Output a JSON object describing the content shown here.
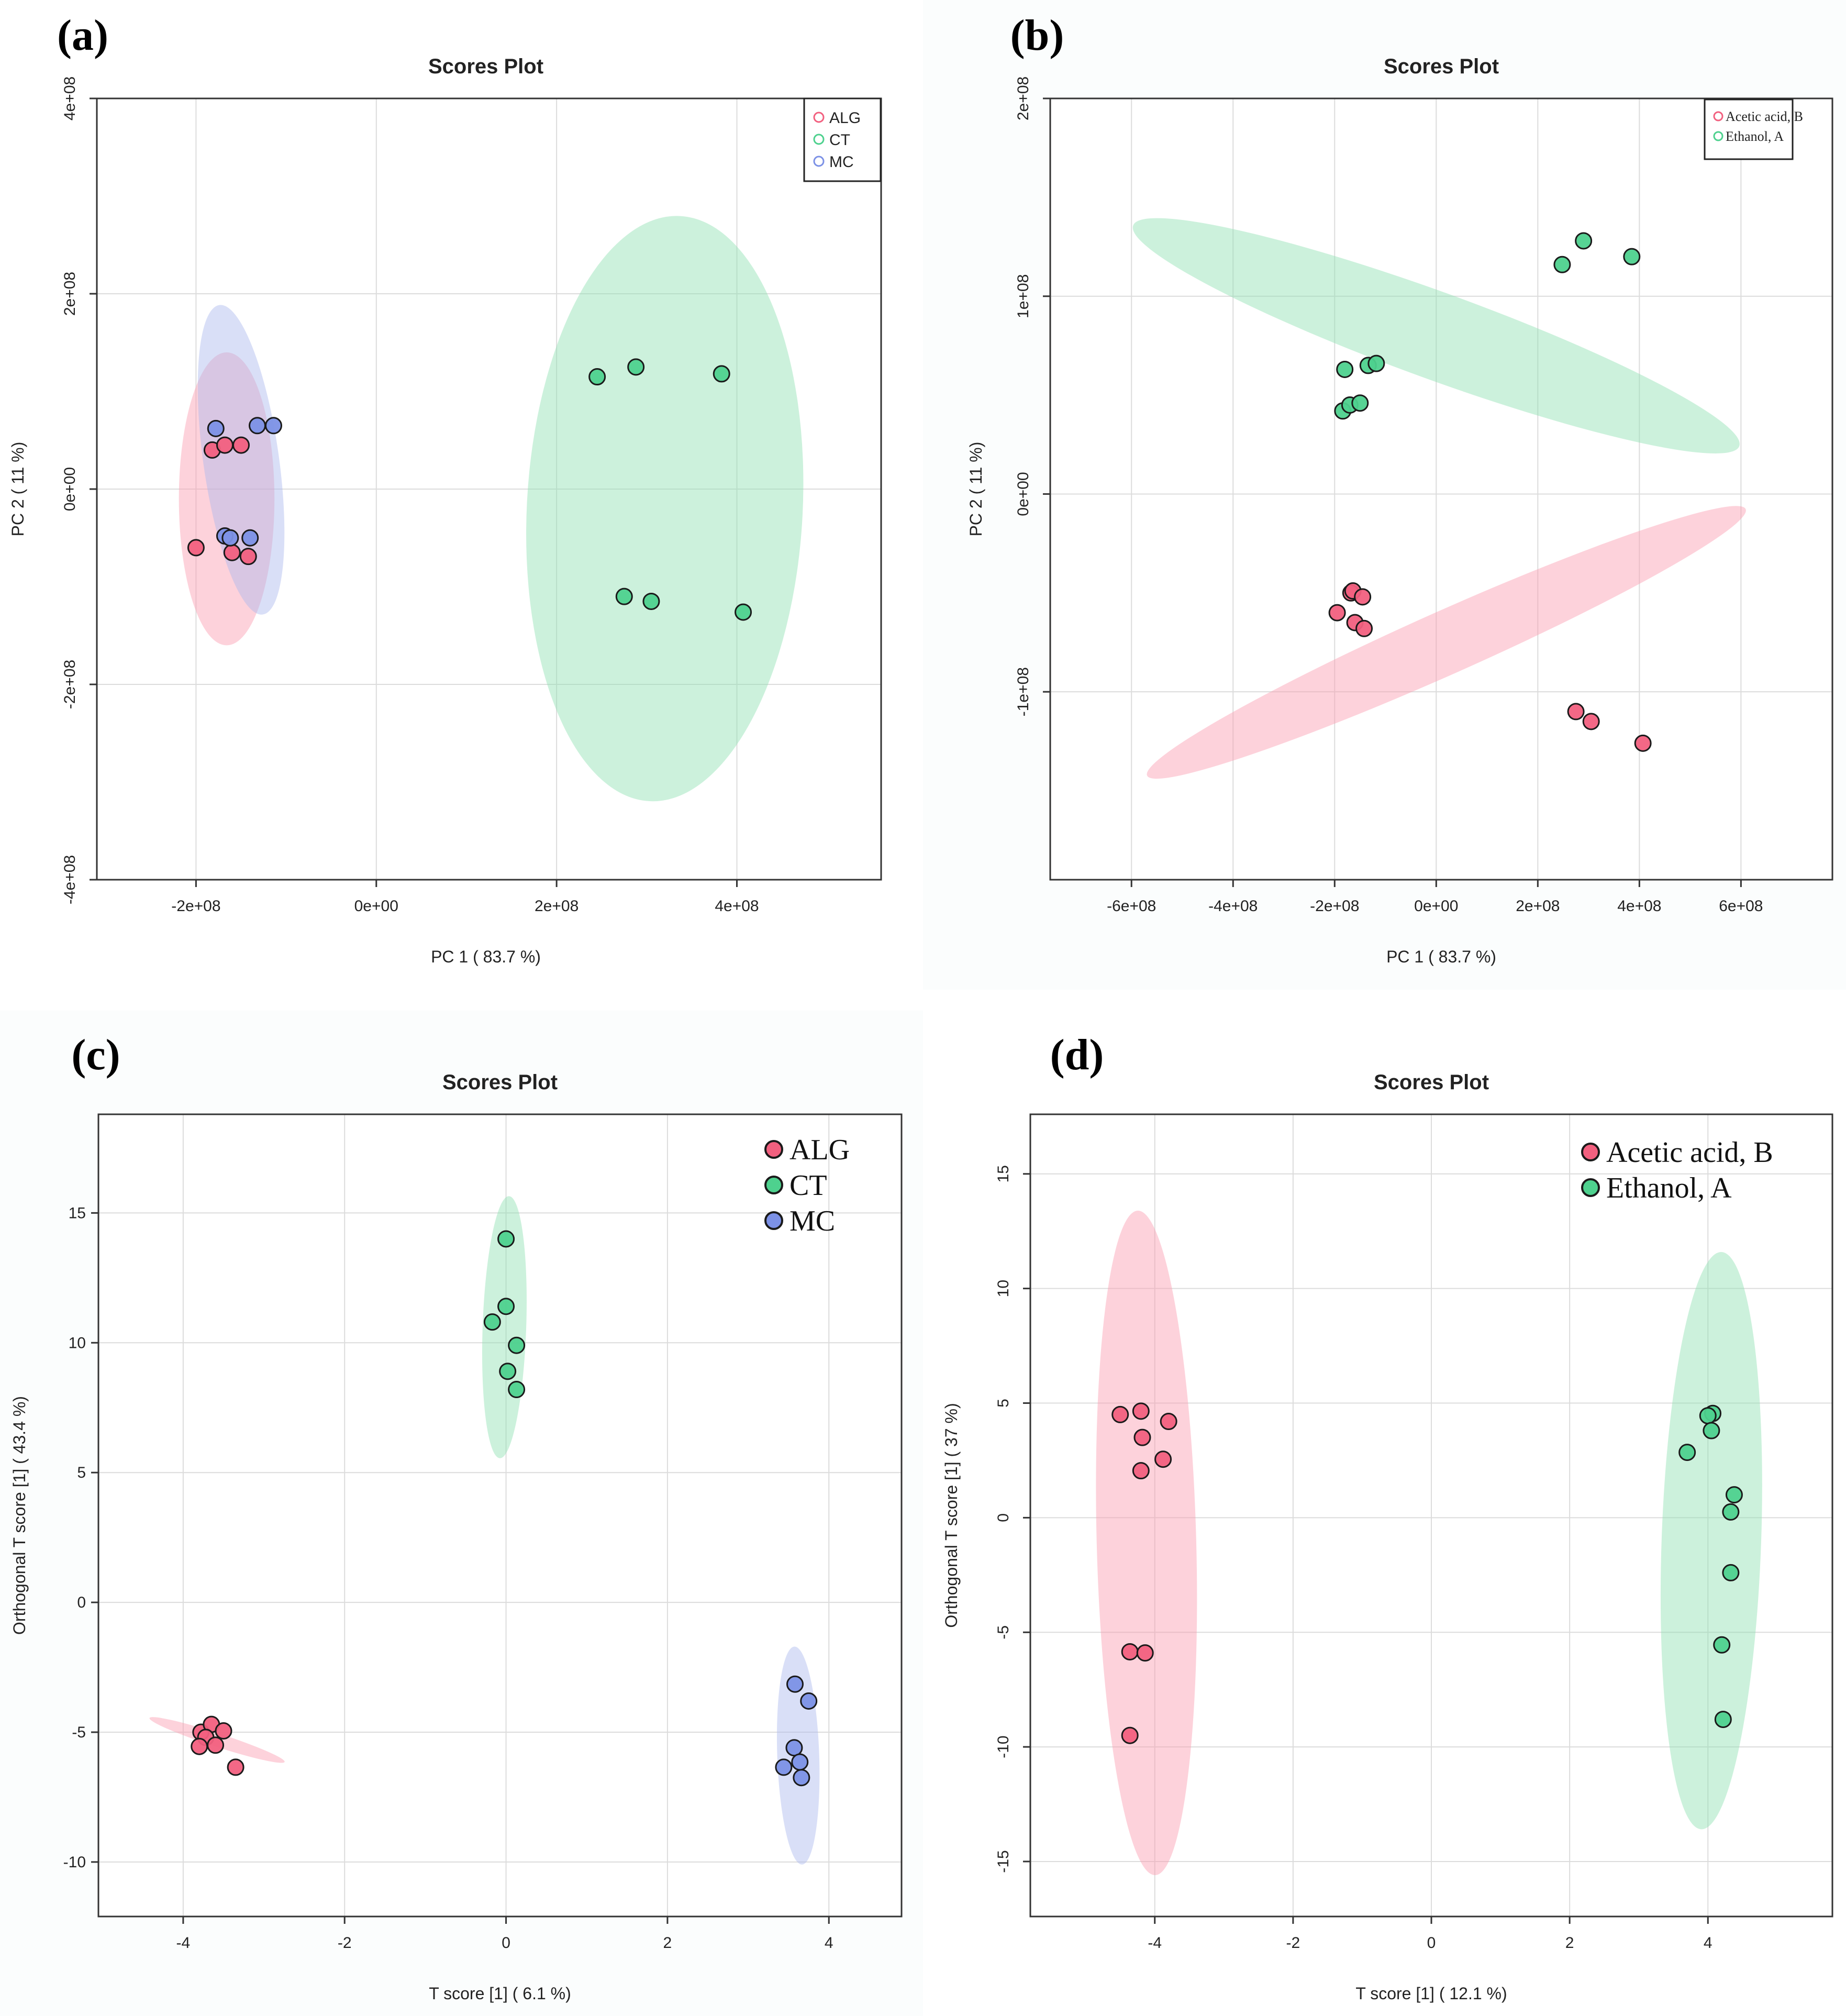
{
  "chart_data": [
    {
      "id": "a",
      "panel_label": "(a)",
      "type": "scatter",
      "title": "Scores Plot",
      "xlabel": "PC 1 ( 83.7 %)",
      "ylabel": "PC 2 ( 11 %)",
      "xlim": [
        -310000000.0,
        560000000.0
      ],
      "ylim": [
        -400000000.0,
        400000000.0
      ],
      "xticks": [
        -200000000.0,
        0,
        200000000.0,
        400000000.0
      ],
      "xtick_labels": [
        "-2e+08",
        "0e+00",
        "2e+08",
        "4e+08"
      ],
      "yticks": [
        -400000000.0,
        -200000000.0,
        0,
        200000000.0,
        400000000.0
      ],
      "ytick_labels": [
        "-4e+08",
        "-2e+08",
        "0e+00",
        "2e+08",
        "4e+08"
      ],
      "ytick_rotated": true,
      "legend_style": "small",
      "legend_position": "top-right",
      "series": [
        {
          "name": "ALG",
          "color": "#f2607f",
          "ellipse_fill": "#fb9bb0",
          "ellipse": {
            "cx": -166000000.0,
            "cy": -10000000.0,
            "rx": 53000000.0,
            "ry": 150000000.0,
            "angle": 0
          },
          "points": [
            [
              -200000000.0,
              -60000000.0
            ],
            [
              -182000000.0,
              40000000.0
            ],
            [
              -168000000.0,
              45000000.0
            ],
            [
              -150000000.0,
              45000000.0
            ],
            [
              -160000000.0,
              -65000000.0
            ],
            [
              -142000000.0,
              -69000000.0
            ]
          ]
        },
        {
          "name": "CT",
          "color": "#4ed18e",
          "ellipse_fill": "#8fe0b2",
          "ellipse": {
            "cx": 320000000.0,
            "cy": -20000000.0,
            "rx": 153000000.0,
            "ry": 300000000.0,
            "angle": -3
          },
          "points": [
            [
              245000000.0,
              115000000.0
            ],
            [
              288000000.0,
              125000000.0
            ],
            [
              383000000.0,
              118000000.0
            ],
            [
              275000000.0,
              -110000000.0
            ],
            [
              305000000.0,
              -115000000.0
            ],
            [
              407000000.0,
              -126000000.0
            ]
          ]
        },
        {
          "name": "MC",
          "color": "#7c91e6",
          "ellipse_fill": "#aab7ee",
          "ellipse": {
            "cx": -150000000.0,
            "cy": 30000000.0,
            "rx": 42000000.0,
            "ry": 160000000.0,
            "angle": 8
          },
          "points": [
            [
              -178000000.0,
              62000000.0
            ],
            [
              -132000000.0,
              65000000.0
            ],
            [
              -114000000.0,
              65000000.0
            ],
            [
              -168000000.0,
              -48000000.0
            ],
            [
              -162000000.0,
              -50000000.0
            ],
            [
              -140000000.0,
              -50000000.0
            ]
          ]
        }
      ]
    },
    {
      "id": "b",
      "panel_label": "(b)",
      "type": "scatter",
      "title": "Scores Plot",
      "xlabel": "PC 1 ( 83.7 %)",
      "ylabel": "PC 2 ( 11 %)",
      "xlim": [
        -760000000.0,
        780000000.0
      ],
      "ylim": [
        -195000000.0,
        200000000.0
      ],
      "xticks": [
        -600000000.0,
        -400000000.0,
        -200000000.0,
        0,
        200000000.0,
        400000000.0,
        600000000.0
      ],
      "xtick_labels": [
        "-6e+08",
        "-4e+08",
        "-2e+08",
        "0e+00",
        "2e+08",
        "4e+08",
        "6e+08"
      ],
      "yticks": [
        -100000000.0,
        0,
        100000000.0,
        200000000.0
      ],
      "ytick_labels": [
        "-1e+08",
        "0e+00",
        "1e+08",
        "2e+08"
      ],
      "ytick_rotated": true,
      "legend_style": "serif-small",
      "legend_position": "top-right",
      "series": [
        {
          "name": "Acetic acid, B",
          "color": "#f2607f",
          "ellipse_fill": "#fb9bb0",
          "ellipse": {
            "cx": 20000000.0,
            "cy": -75000000.0,
            "rx": 645000000.0,
            "ry": 16000000.0,
            "angle": 24
          },
          "points": [
            [
              -195000000.0,
              -60000000.0
            ],
            [
              -168000000.0,
              -50000000.0
            ],
            [
              -164000000.0,
              -49000000.0
            ],
            [
              -145000000.0,
              -52000000.0
            ],
            [
              -160000000.0,
              -65000000.0
            ],
            [
              -142000000.0,
              -68000000.0
            ],
            [
              275000000.0,
              -110000000.0
            ],
            [
              305000000.0,
              -115000000.0
            ],
            [
              407000000.0,
              -126000000.0
            ]
          ]
        },
        {
          "name": "Ethanol, A",
          "color": "#4ed18e",
          "ellipse_fill": "#8fe0b2",
          "ellipse": {
            "cx": 0.0,
            "cy": 80000000.0,
            "rx": 635000000.0,
            "ry": 22000000.0,
            "angle": -20
          },
          "points": [
            [
              248000000.0,
              116000000.0
            ],
            [
              290000000.0,
              128000000.0
            ],
            [
              385000000.0,
              120000000.0
            ],
            [
              -180000000.0,
              63000000.0
            ],
            [
              -134000000.0,
              65000000.0
            ],
            [
              -118000000.0,
              66000000.0
            ],
            [
              -184000000.0,
              42000000.0
            ],
            [
              -170000000.0,
              45000000.0
            ],
            [
              -150000000.0,
              46000000.0
            ]
          ]
        }
      ]
    },
    {
      "id": "c",
      "panel_label": "(c)",
      "type": "scatter",
      "title": "Scores Plot",
      "xlabel": "T score [1] ( 6.1 %)",
      "ylabel": "Orthogonal T score [1] ( 43.4 %)",
      "xlim": [
        -5.05,
        4.9
      ],
      "ylim": [
        -12.1,
        18.8
      ],
      "xticks": [
        -4,
        -2,
        0,
        2,
        4
      ],
      "xtick_labels": [
        "-4",
        "-2",
        "0",
        "2",
        "4"
      ],
      "yticks": [
        -10,
        -5,
        0,
        5,
        10,
        15
      ],
      "ytick_labels": [
        "-10",
        "-5",
        "0",
        "5",
        "10",
        "15"
      ],
      "ytick_rotated": false,
      "legend_style": "serif-big",
      "legend_position": "top-right",
      "series": [
        {
          "name": "ALG",
          "color": "#f2607f",
          "ellipse_fill": "#fb9bb0",
          "ellipse": {
            "cx": -3.58,
            "cy": -5.3,
            "rx": 0.88,
            "ry": 0.26,
            "angle": -18
          },
          "points": [
            [
              -3.78,
              -5.0
            ],
            [
              -3.65,
              -4.7
            ],
            [
              -3.5,
              -4.95
            ],
            [
              -3.72,
              -5.2
            ],
            [
              -3.6,
              -5.5
            ],
            [
              -3.8,
              -5.55
            ],
            [
              -3.35,
              -6.35
            ]
          ]
        },
        {
          "name": "CT",
          "color": "#4ed18e",
          "ellipse_fill": "#8fe0b2",
          "ellipse": {
            "cx": -0.02,
            "cy": 10.6,
            "rx": 0.27,
            "ry": 5.05,
            "angle": -2
          },
          "points": [
            [
              0.0,
              14.0
            ],
            [
              0.0,
              11.4
            ],
            [
              -0.17,
              10.8
            ],
            [
              0.13,
              9.9
            ],
            [
              0.02,
              8.9
            ],
            [
              0.13,
              8.2
            ]
          ]
        },
        {
          "name": "MC",
          "color": "#7c91e6",
          "ellipse_fill": "#aab7ee",
          "ellipse": {
            "cx": 3.62,
            "cy": -5.9,
            "rx": 0.26,
            "ry": 4.2,
            "angle": 2
          },
          "points": [
            [
              3.58,
              -3.15
            ],
            [
              3.75,
              -3.8
            ],
            [
              3.57,
              -5.6
            ],
            [
              3.64,
              -6.15
            ],
            [
              3.44,
              -6.35
            ],
            [
              3.66,
              -6.75
            ]
          ]
        }
      ]
    },
    {
      "id": "d",
      "panel_label": "(d)",
      "type": "scatter",
      "title": "Scores Plot",
      "xlabel": "T score [1] ( 12.1 %)",
      "ylabel": "Orthogonal T score [1] ( 37 %)",
      "xlim": [
        -5.8,
        5.8
      ],
      "ylim": [
        -17.4,
        17.6
      ],
      "xticks": [
        -4,
        -2,
        0,
        2,
        4
      ],
      "xtick_labels": [
        "-4",
        "-2",
        "0",
        "2",
        "4"
      ],
      "yticks": [
        -15,
        -10,
        -5,
        0,
        5,
        10,
        15
      ],
      "ytick_labels": [
        "-15",
        "-10",
        "-5",
        "0",
        "5",
        "10",
        "15"
      ],
      "ytick_rotated": true,
      "legend_style": "serif-big",
      "legend_position": "top-right",
      "series": [
        {
          "name": "Acetic acid, B",
          "color": "#f2607f",
          "ellipse_fill": "#fb9bb0",
          "ellipse": {
            "cx": -4.12,
            "cy": -1.1,
            "rx": 0.72,
            "ry": 14.5,
            "angle": 1.5
          },
          "points": [
            [
              -4.5,
              4.5
            ],
            [
              -4.2,
              4.65
            ],
            [
              -3.8,
              4.2
            ],
            [
              -4.18,
              3.5
            ],
            [
              -3.88,
              2.55
            ],
            [
              -4.2,
              2.05
            ],
            [
              -4.36,
              -5.85
            ],
            [
              -4.14,
              -5.9
            ],
            [
              -4.36,
              -9.5
            ]
          ]
        },
        {
          "name": "Ethanol, A",
          "color": "#4ed18e",
          "ellipse_fill": "#8fe0b2",
          "ellipse": {
            "cx": 4.05,
            "cy": -1.0,
            "rx": 0.72,
            "ry": 12.6,
            "angle": -2
          },
          "points": [
            [
              4.07,
              4.55
            ],
            [
              4.0,
              4.45
            ],
            [
              4.05,
              3.8
            ],
            [
              3.7,
              2.85
            ],
            [
              4.38,
              1.0
            ],
            [
              4.33,
              0.25
            ],
            [
              4.33,
              -2.4
            ],
            [
              4.2,
              -5.55
            ],
            [
              4.22,
              -8.8
            ]
          ]
        }
      ]
    }
  ]
}
